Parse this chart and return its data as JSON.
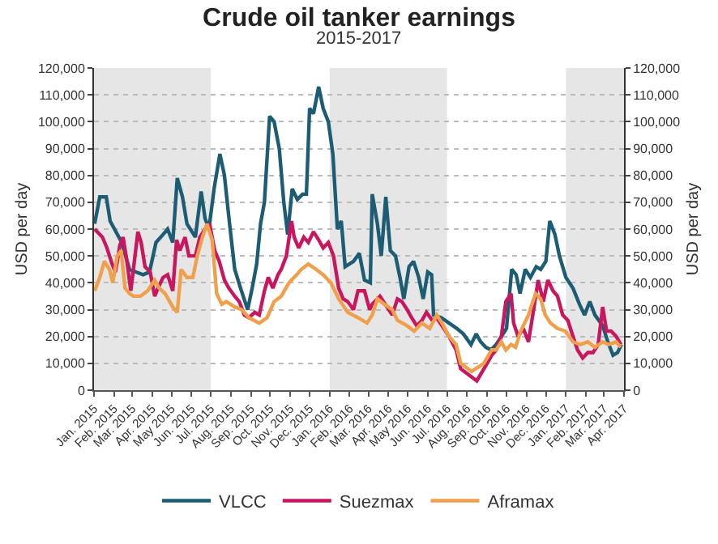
{
  "chart_data": {
    "type": "line",
    "title": "Crude oil tanker earnings",
    "subtitle": "2015-2017",
    "ylabel": "USD per day",
    "y2label": "USD per day",
    "xlim": [
      "2015-01-01",
      "2017-04-01"
    ],
    "xticks": [
      {
        "value": "2015-01-01",
        "label": "Jan. 2015"
      },
      {
        "value": "2015-02-01",
        "label": "Feb. 2015"
      },
      {
        "value": "2015-03-01",
        "label": "Mar. 2015"
      },
      {
        "value": "2015-04-01",
        "label": "Apr. 2015"
      },
      {
        "value": "2015-05-01",
        "label": "May 2015"
      },
      {
        "value": "2015-06-01",
        "label": "Jun. 2015"
      },
      {
        "value": "2015-07-01",
        "label": "Jul. 2015"
      },
      {
        "value": "2015-08-01",
        "label": "Aug. 2015"
      },
      {
        "value": "2015-09-01",
        "label": "Sep. 2015"
      },
      {
        "value": "2015-10-01",
        "label": "Oct. 2015"
      },
      {
        "value": "2015-11-01",
        "label": "Nov. 2015"
      },
      {
        "value": "2015-12-01",
        "label": "Dec. 2015"
      },
      {
        "value": "2016-01-01",
        "label": "Jan. 2016"
      },
      {
        "value": "2016-02-01",
        "label": "Feb. 2016"
      },
      {
        "value": "2016-03-01",
        "label": "Mar. 2016"
      },
      {
        "value": "2016-04-01",
        "label": "Apr. 2016"
      },
      {
        "value": "2016-05-01",
        "label": "May 2016"
      },
      {
        "value": "2016-06-01",
        "label": "Jun. 2016"
      },
      {
        "value": "2016-07-01",
        "label": "Jul. 2016"
      },
      {
        "value": "2016-08-01",
        "label": "Aug. 2016"
      },
      {
        "value": "2016-09-01",
        "label": "Sep. 2016"
      },
      {
        "value": "2016-10-01",
        "label": "Oct. 2016"
      },
      {
        "value": "2016-11-01",
        "label": "Nov. 2016"
      },
      {
        "value": "2016-12-01",
        "label": "Dec. 2016"
      },
      {
        "value": "2017-01-01",
        "label": "Jan. 2017"
      },
      {
        "value": "2017-02-01",
        "label": "Feb. 2017"
      },
      {
        "value": "2017-03-01",
        "label": "Mar. 2017"
      },
      {
        "value": "2017-04-01",
        "label": "Apr. 2017"
      }
    ],
    "ylim": [
      0,
      120000
    ],
    "yticks": [
      {
        "value": 0,
        "label": "0"
      },
      {
        "value": 10000,
        "label": "10,000"
      },
      {
        "value": 20000,
        "label": "20,000"
      },
      {
        "value": 30000,
        "label": "30,000"
      },
      {
        "value": 40000,
        "label": "40,000"
      },
      {
        "value": 50000,
        "label": "50,000"
      },
      {
        "value": 60000,
        "label": "60,000"
      },
      {
        "value": 70000,
        "label": "70,000"
      },
      {
        "value": 80000,
        "label": "80,000"
      },
      {
        "value": 90000,
        "label": "90,000"
      },
      {
        "value": 100000,
        "label": "100,000"
      },
      {
        "value": 110000,
        "label": "110,000"
      },
      {
        "value": 120000,
        "label": "120,000"
      }
    ],
    "y2lim": [
      0,
      120000
    ],
    "y2ticks": [
      {
        "value": 0,
        "label": "0"
      },
      {
        "value": 10000,
        "label": "10,000"
      },
      {
        "value": 20000,
        "label": "20,000"
      },
      {
        "value": 30000,
        "label": "30,000"
      },
      {
        "value": 40000,
        "label": "40,000"
      },
      {
        "value": 50000,
        "label": "50,000"
      },
      {
        "value": 60000,
        "label": "60,000"
      },
      {
        "value": 70000,
        "label": "70,000"
      },
      {
        "value": 80000,
        "label": "80,000"
      },
      {
        "value": 90000,
        "label": "90,000"
      },
      {
        "value": 100000,
        "label": "100,000"
      },
      {
        "value": 110000,
        "label": "110,000"
      },
      {
        "value": 120000,
        "label": "120,000"
      }
    ],
    "grid": "y",
    "legend": "bottom",
    "marker": "none",
    "line_style": "solid",
    "bands": [
      {
        "axis": "x",
        "from": "2015-01-01",
        "to": "2015-07-01",
        "color": "#e6e6e6"
      },
      {
        "axis": "x",
        "from": "2016-01-01",
        "to": "2016-07-01",
        "color": "#e6e6e6"
      },
      {
        "axis": "x",
        "from": "2017-01-01",
        "to": "2017-04-01",
        "color": "#e6e6e6"
      }
    ],
    "series": [
      {
        "name": "VLCC",
        "color": "#1d5d74",
        "x": [
          "2015-01-02",
          "2015-01-10",
          "2015-01-20",
          "2015-01-26",
          "2015-02-13",
          "2015-02-25",
          "2015-03-07",
          "2015-03-18",
          "2015-03-28",
          "2015-04-07",
          "2015-04-18",
          "2015-04-25",
          "2015-05-03",
          "2015-05-10",
          "2015-05-18",
          "2015-05-25",
          "2015-06-07",
          "2015-06-16",
          "2015-06-22",
          "2015-06-28",
          "2015-07-06",
          "2015-07-15",
          "2015-07-22",
          "2015-07-30",
          "2015-08-07",
          "2015-08-16",
          "2015-08-27",
          "2015-09-03",
          "2015-09-10",
          "2015-09-16",
          "2015-09-22",
          "2015-09-30",
          "2015-10-07",
          "2015-10-15",
          "2015-10-22",
          "2015-10-28",
          "2015-11-04",
          "2015-11-12",
          "2015-11-20",
          "2015-11-26",
          "2015-12-01",
          "2015-12-07",
          "2015-12-15",
          "2015-12-22",
          "2015-12-30",
          "2016-01-06",
          "2016-01-13",
          "2016-01-19",
          "2016-01-25",
          "2016-02-07",
          "2016-02-16",
          "2016-02-24",
          "2016-03-04",
          "2016-03-07",
          "2016-03-15",
          "2016-03-21",
          "2016-03-28",
          "2016-04-04",
          "2016-04-12",
          "2016-04-19",
          "2016-04-25",
          "2016-05-03",
          "2016-05-10",
          "2016-05-18",
          "2016-05-25",
          "2016-06-01",
          "2016-06-07",
          "2016-06-10",
          "2016-06-22",
          "2016-07-04",
          "2016-07-16",
          "2016-07-26",
          "2016-08-07",
          "2016-08-15",
          "2016-08-22",
          "2016-08-30",
          "2016-09-07",
          "2016-09-15",
          "2016-10-01",
          "2016-10-09",
          "2016-10-16",
          "2016-10-22",
          "2016-10-30",
          "2016-11-07",
          "2016-11-16",
          "2016-11-23",
          "2016-12-01",
          "2016-12-07",
          "2016-12-15",
          "2016-12-22",
          "2017-01-01",
          "2017-01-12",
          "2017-01-22",
          "2017-01-30",
          "2017-02-07",
          "2017-02-15",
          "2017-02-27",
          "2017-03-07",
          "2017-03-15",
          "2017-03-22",
          "2017-03-28"
        ],
        "values": [
          62000,
          72000,
          72000,
          63000,
          55000,
          45000,
          44000,
          43000,
          44000,
          55000,
          58000,
          60000,
          55000,
          79000,
          72000,
          62000,
          57000,
          74000,
          64000,
          60000,
          75000,
          88000,
          80000,
          62000,
          45000,
          38000,
          30000,
          38000,
          47000,
          62000,
          70000,
          102000,
          100000,
          90000,
          70000,
          58000,
          75000,
          71000,
          73000,
          73000,
          105000,
          103000,
          113000,
          105000,
          100000,
          88000,
          60000,
          63000,
          46000,
          48000,
          51000,
          41000,
          40000,
          73000,
          62000,
          50000,
          72000,
          52000,
          50000,
          42000,
          34000,
          46000,
          48000,
          42000,
          34000,
          44000,
          43000,
          28000,
          27000,
          25000,
          23000,
          21000,
          17000,
          21000,
          18000,
          16000,
          15000,
          17000,
          23000,
          45000,
          43000,
          36000,
          45000,
          42000,
          46000,
          45000,
          48000,
          63000,
          58000,
          50000,
          42000,
          38000,
          32000,
          28000,
          33000,
          28000,
          24000,
          18000,
          13000,
          14000,
          17000
        ]
      },
      {
        "name": "Suezmax",
        "color": "#c8175e",
        "x": [
          "2015-01-02",
          "2015-01-14",
          "2015-01-21",
          "2015-01-29",
          "2015-02-03",
          "2015-02-06",
          "2015-02-10",
          "2015-02-15",
          "2015-02-21",
          "2015-02-27",
          "2015-03-03",
          "2015-03-10",
          "2015-03-15",
          "2015-03-21",
          "2015-03-29",
          "2015-04-05",
          "2015-04-10",
          "2015-04-18",
          "2015-04-25",
          "2015-05-03",
          "2015-05-09",
          "2015-05-14",
          "2015-05-22",
          "2015-05-28",
          "2015-06-07",
          "2015-06-14",
          "2015-06-22",
          "2015-06-29",
          "2015-07-07",
          "2015-07-14",
          "2015-07-22",
          "2015-07-29",
          "2015-08-07",
          "2015-08-14",
          "2015-08-22",
          "2015-08-29",
          "2015-09-07",
          "2015-09-14",
          "2015-09-22",
          "2015-09-28",
          "2015-10-05",
          "2015-10-13",
          "2015-10-18",
          "2015-10-26",
          "2015-11-03",
          "2015-11-07",
          "2015-11-14",
          "2015-11-22",
          "2015-11-29",
          "2015-12-07",
          "2015-12-15",
          "2015-12-22",
          "2015-12-30",
          "2016-01-07",
          "2016-01-15",
          "2016-01-22",
          "2016-01-29",
          "2016-02-07",
          "2016-02-14",
          "2016-02-24",
          "2016-03-03",
          "2016-03-07",
          "2016-03-19",
          "2016-03-30",
          "2016-04-07",
          "2016-04-15",
          "2016-04-22",
          "2016-04-30",
          "2016-05-07",
          "2016-05-15",
          "2016-05-23",
          "2016-05-30",
          "2016-06-08",
          "2016-06-15",
          "2016-06-23",
          "2016-07-04",
          "2016-07-15",
          "2016-07-22",
          "2016-08-16",
          "2016-09-01",
          "2016-09-08",
          "2016-09-15",
          "2016-09-23",
          "2016-09-30",
          "2016-10-08",
          "2016-10-12",
          "2016-10-19",
          "2016-10-27",
          "2016-11-04",
          "2016-11-12",
          "2016-11-19",
          "2016-11-27",
          "2016-12-04",
          "2016-12-12",
          "2016-12-19",
          "2016-12-27",
          "2017-01-04",
          "2017-01-12",
          "2017-01-19",
          "2017-01-27",
          "2017-02-04",
          "2017-02-12",
          "2017-02-20",
          "2017-02-27",
          "2017-03-05",
          "2017-03-12",
          "2017-03-20",
          "2017-03-27"
        ],
        "values": [
          60000,
          57000,
          53000,
          47000,
          44000,
          48000,
          54000,
          57000,
          48000,
          37000,
          45000,
          59000,
          55000,
          46000,
          44000,
          35000,
          38000,
          42000,
          43000,
          37000,
          56000,
          52000,
          57000,
          50000,
          50000,
          57000,
          60000,
          62000,
          52000,
          48000,
          41000,
          38000,
          35000,
          33000,
          28000,
          27000,
          29000,
          28000,
          37000,
          42000,
          38000,
          43000,
          45000,
          50000,
          63000,
          57000,
          53000,
          57000,
          55000,
          59000,
          56000,
          53000,
          55000,
          50000,
          38000,
          34000,
          33000,
          30000,
          37000,
          37000,
          30000,
          32000,
          35000,
          31000,
          28000,
          34000,
          33000,
          30000,
          27000,
          24000,
          26000,
          29000,
          26000,
          27000,
          24000,
          20000,
          15000,
          8000,
          3500,
          10000,
          13000,
          15000,
          20000,
          33000,
          36000,
          25000,
          20000,
          23000,
          18000,
          30000,
          41000,
          33000,
          41000,
          37000,
          35000,
          28000,
          26000,
          20000,
          15000,
          12000,
          14000,
          14000,
          17000,
          31000,
          22000,
          22000,
          20000,
          17000
        ]
      },
      {
        "name": "Aframax",
        "color": "#f0a04b",
        "x": [
          "2015-01-02",
          "2015-01-10",
          "2015-01-17",
          "2015-01-25",
          "2015-01-30",
          "2015-02-06",
          "2015-02-12",
          "2015-02-18",
          "2015-02-25",
          "2015-03-03",
          "2015-03-14",
          "2015-03-25",
          "2015-04-05",
          "2015-04-12",
          "2015-04-21",
          "2015-05-03",
          "2015-05-10",
          "2015-05-16",
          "2015-05-25",
          "2015-06-03",
          "2015-06-10",
          "2015-06-18",
          "2015-06-25",
          "2015-07-03",
          "2015-07-10",
          "2015-07-18",
          "2015-07-25",
          "2015-08-07",
          "2015-08-18",
          "2015-08-29",
          "2015-09-14",
          "2015-09-26",
          "2015-10-07",
          "2015-10-18",
          "2015-10-30",
          "2015-11-11",
          "2015-11-18",
          "2015-11-29",
          "2015-12-11",
          "2015-12-22",
          "2016-01-03",
          "2016-01-15",
          "2016-01-29",
          "2016-02-14",
          "2016-02-28",
          "2016-03-07",
          "2016-03-15",
          "2016-03-26",
          "2016-04-07",
          "2016-04-15",
          "2016-04-30",
          "2016-05-11",
          "2016-05-23",
          "2016-06-04",
          "2016-06-15",
          "2016-06-23",
          "2016-07-04",
          "2016-07-15",
          "2016-07-22",
          "2016-08-08",
          "2016-08-27",
          "2016-09-08",
          "2016-09-15",
          "2016-09-23",
          "2016-09-30",
          "2016-10-08",
          "2016-10-15",
          "2016-10-23",
          "2016-11-04",
          "2016-11-15",
          "2016-11-23",
          "2016-11-30",
          "2016-12-08",
          "2016-12-19",
          "2016-12-31",
          "2017-01-12",
          "2017-01-23",
          "2017-02-04",
          "2017-02-15",
          "2017-02-27",
          "2017-03-08",
          "2017-03-20",
          "2017-03-27"
        ],
        "values": [
          37000,
          42000,
          48000,
          45000,
          40000,
          50000,
          52000,
          38000,
          36000,
          35000,
          35000,
          37000,
          41000,
          38000,
          36000,
          31000,
          29000,
          45000,
          42000,
          42000,
          50000,
          57000,
          62000,
          56000,
          36000,
          32000,
          33000,
          31000,
          30000,
          27000,
          25000,
          27000,
          33000,
          35000,
          40000,
          43000,
          45000,
          47000,
          45000,
          43000,
          40000,
          34000,
          29000,
          27000,
          25000,
          28000,
          34000,
          32000,
          30000,
          26000,
          24000,
          22000,
          25000,
          23000,
          28000,
          25000,
          20000,
          17000,
          10000,
          7000,
          10000,
          15000,
          15000,
          18000,
          15000,
          17000,
          16000,
          22000,
          28000,
          36000,
          34000,
          28000,
          25000,
          23000,
          22000,
          18000,
          17000,
          18000,
          16000,
          18000,
          17000,
          18000,
          16000
        ]
      }
    ]
  }
}
